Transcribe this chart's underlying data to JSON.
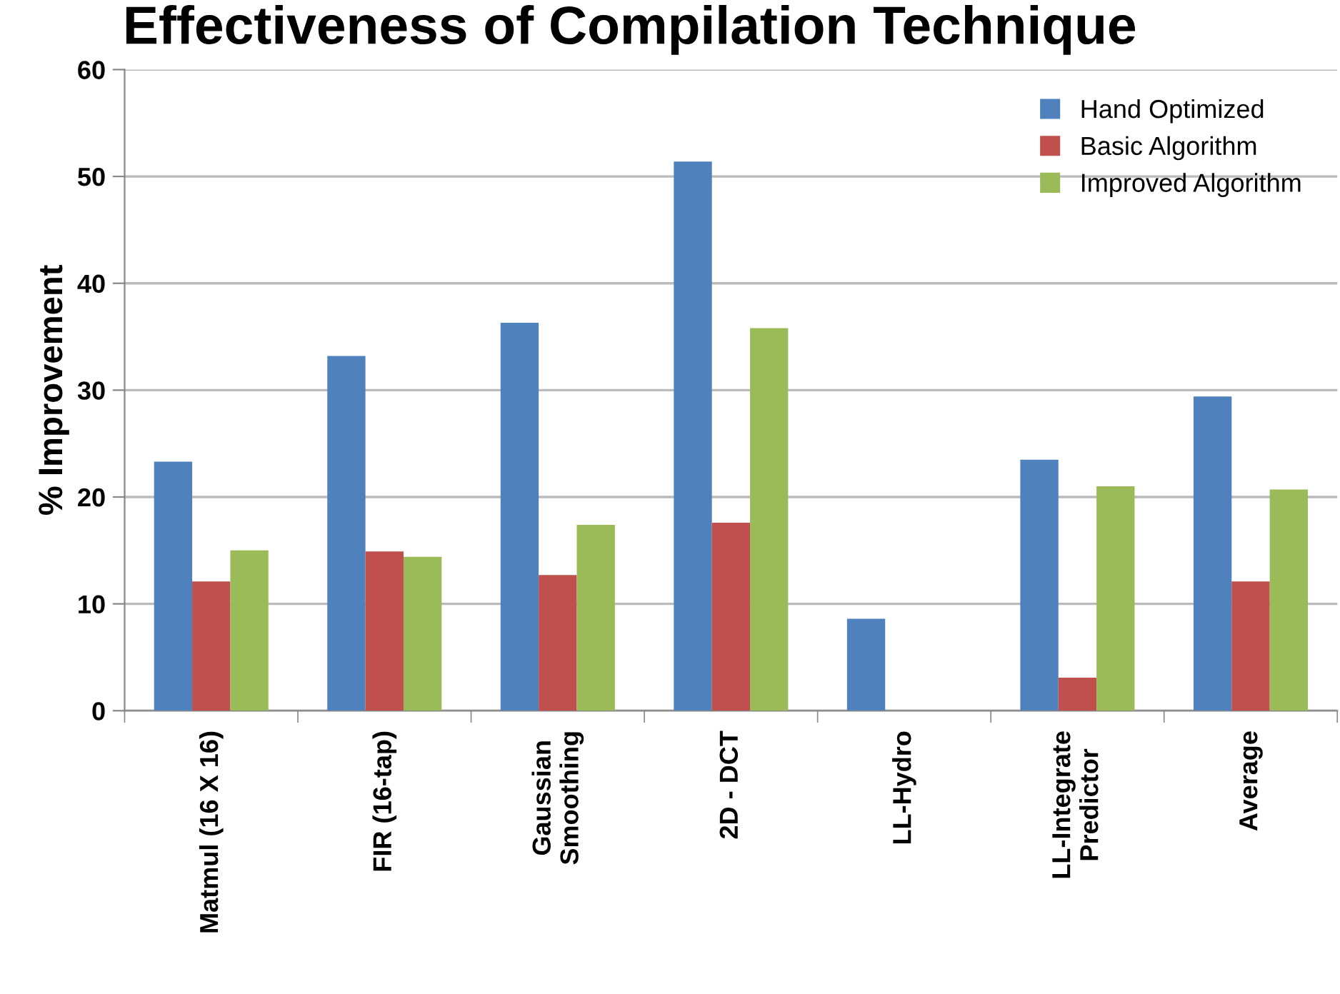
{
  "chart_data": {
    "type": "bar",
    "title": "Effectiveness of Compilation Technique",
    "ylabel": "% Improvement",
    "categories": [
      "Matmul (16 X 16)",
      "FIR (16-tap)",
      "Gaussian\nSmoothing",
      "2D - DCT",
      "LL-Hydro",
      "LL-Integrate\nPredictor",
      "Average"
    ],
    "series": [
      {
        "name": "Hand Optimized",
        "color": "#4f81bd",
        "values": [
          23.3,
          33.2,
          36.3,
          51.4,
          8.6,
          23.5,
          29.4
        ]
      },
      {
        "name": "Basic Algorithm",
        "color": "#c0504d",
        "values": [
          12.1,
          14.9,
          12.7,
          17.6,
          null,
          3.1,
          12.1
        ]
      },
      {
        "name": "Improved Algorithm",
        "color": "#9bbb59",
        "values": [
          15.0,
          14.4,
          17.4,
          35.8,
          null,
          21.0,
          20.7
        ]
      }
    ],
    "ylim": [
      0,
      60
    ],
    "yticks": [
      0,
      10,
      20,
      30,
      40,
      50,
      60
    ],
    "grid": "y",
    "legend": "top right"
  }
}
